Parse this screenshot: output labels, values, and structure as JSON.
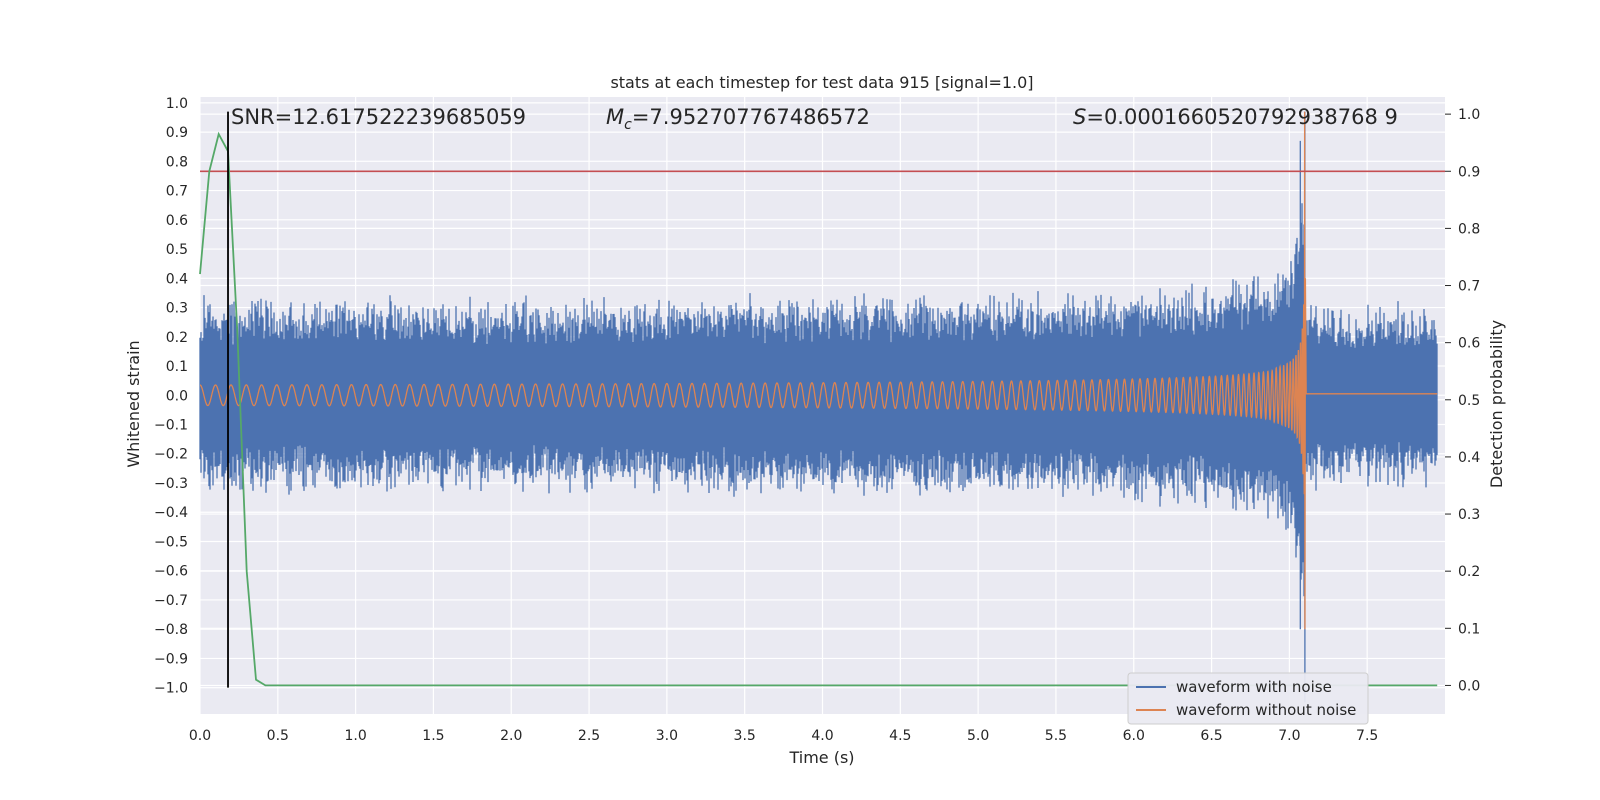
{
  "chart_data": {
    "type": "line",
    "title": "stats at each timestep for test data 915 [signal=1.0]",
    "xlabel": "Time (s)",
    "ylabel": "Whitened strain",
    "y2label": "Detection probability",
    "xlim": [
      0.0,
      8.0
    ],
    "ylim": [
      -1.09,
      1.02
    ],
    "y2lim": [
      -0.05,
      1.03
    ],
    "xticks": [
      "0.0",
      "0.5",
      "1.0",
      "1.5",
      "2.0",
      "2.5",
      "3.0",
      "3.5",
      "4.0",
      "4.5",
      "5.0",
      "5.5",
      "6.0",
      "6.5",
      "7.0",
      "7.5"
    ],
    "yticks": [
      "1.0",
      "0.9",
      "0.8",
      "0.7",
      "0.6",
      "0.5",
      "0.4",
      "0.3",
      "0.2",
      "0.1",
      "0.0",
      "−0.1",
      "−0.2",
      "−0.3",
      "−0.4",
      "−0.5",
      "−0.6",
      "−0.7",
      "−0.8",
      "−0.9",
      "−1.0"
    ],
    "y2ticks": [
      "1.0",
      "0.9",
      "0.8",
      "0.7",
      "0.6",
      "0.5",
      "0.4",
      "0.3",
      "0.2",
      "0.1",
      "0.0"
    ],
    "annotations": {
      "snr": "SNR=12.617522239685059",
      "mc_symbol": "M",
      "mc_sub": "c",
      "mc_value": "=7.952707767486572",
      "s_symbol": "S",
      "s_value": "=0.0001660520792938768 9"
    },
    "threshold": {
      "value": 0.9,
      "axis": "right",
      "color": "#c44e52"
    },
    "vline": {
      "x": 0.18,
      "y_from": -1.0,
      "y_to": 0.97,
      "color": "#000000"
    },
    "series": [
      {
        "name": "waveform with noise",
        "color": "#4c72b0",
        "noise_amplitude": 0.33,
        "merger_time": 7.1,
        "peak_strain": -1.05
      },
      {
        "name": "waveform without noise",
        "color": "#dd8452",
        "start_amplitude": 0.035,
        "merger_time": 7.1,
        "peak_strain": 0.97,
        "ringdown_offset": 0.005
      },
      {
        "name": "detection probability",
        "color": "#55a868",
        "axis": "right",
        "x": [
          0.0,
          0.06,
          0.12,
          0.18,
          0.24,
          0.3,
          0.36,
          0.42,
          7.95
        ],
        "y": [
          0.72,
          0.9,
          0.965,
          0.935,
          0.62,
          0.2,
          0.01,
          0.0,
          0.0
        ]
      }
    ],
    "legend": {
      "position": "lower-right",
      "entries": [
        "waveform with noise",
        "waveform without noise"
      ]
    },
    "grid": true,
    "background": "#eaeaf2"
  }
}
